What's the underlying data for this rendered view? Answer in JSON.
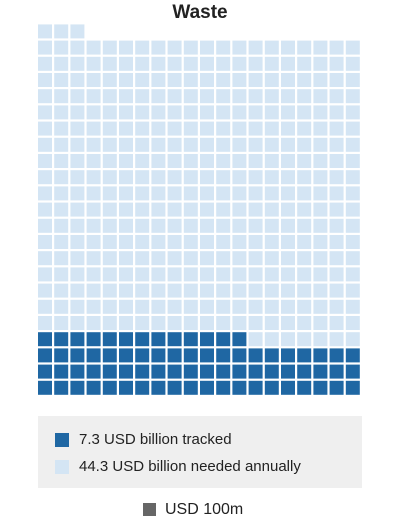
{
  "chart_data": {
    "type": "waffle",
    "title": "Waste",
    "series": [
      {
        "name": "7.3 USD billion tracked",
        "color": "#1f67a3",
        "value": 7.3
      },
      {
        "name": "44.3 USD billion needed annually",
        "color": "#d4e5f4",
        "value": 44.3
      }
    ],
    "unit_label": "USD 100m",
    "unit_color": "#666666",
    "columns": 20
  }
}
